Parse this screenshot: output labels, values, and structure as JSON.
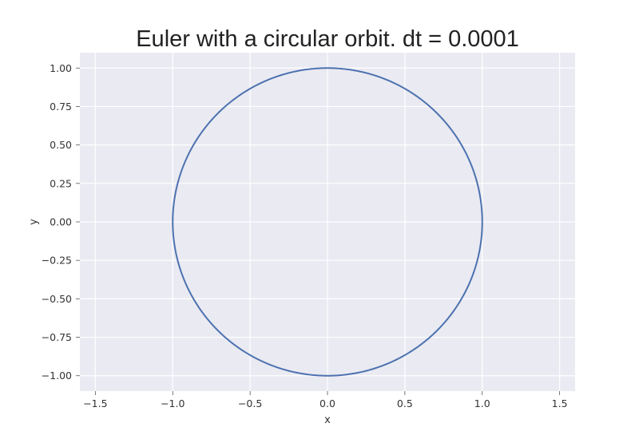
{
  "chart_data": {
    "type": "line",
    "title": "Euler with a circular orbit. dt = 0.0001",
    "xlabel": "x",
    "ylabel": "y",
    "xlim": [
      -1.6,
      1.6
    ],
    "ylim": [
      -1.1,
      1.1
    ],
    "xticks": [
      -1.5,
      -1.0,
      -0.5,
      0.0,
      0.5,
      1.0,
      1.5
    ],
    "xtick_labels": [
      "−1.5",
      "−1.0",
      "−0.5",
      "0.0",
      "0.5",
      "1.0",
      "1.5"
    ],
    "yticks": [
      1.0,
      0.75,
      0.5,
      0.25,
      0.0,
      -0.25,
      -0.5,
      -0.75,
      -1.0
    ],
    "ytick_labels": [
      "1.00",
      "0.75",
      "0.50",
      "0.25",
      "0.00",
      "−0.25",
      "−0.50",
      "−0.75",
      "−1.00"
    ],
    "grid": true,
    "background": "#eaeaf2",
    "series": [
      {
        "color": "#4c72b0",
        "x": [
          1.0,
          0.866,
          0.5,
          0.0,
          -0.5,
          -0.866,
          -1.0,
          -0.866,
          -0.5,
          0.0,
          0.5,
          0.866,
          1.0
        ],
        "y": [
          -0.03,
          -0.5,
          -0.866,
          -1.0,
          -0.866,
          -0.5,
          0.0,
          0.5,
          0.866,
          1.0,
          0.866,
          0.5,
          0.0
        ],
        "radius": 1.0,
        "start_angle_deg": -1.7,
        "end_angle_deg": 360
      }
    ]
  }
}
